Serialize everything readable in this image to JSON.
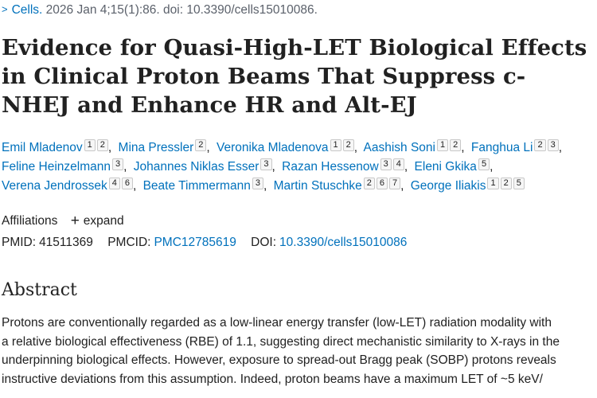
{
  "citation": {
    "journal": "Cells.",
    "details": "2026 Jan 4;15(1):86. doi: 10.3390/cells15010086."
  },
  "title": "Evidence for Quasi-High-LET Biological Effects in Clinical Proton Beams That Suppress c-NHEJ and Enhance HR and Alt-EJ",
  "authors": [
    {
      "name": "Emil Mladenov",
      "affils": [
        "1",
        "2"
      ]
    },
    {
      "name": "Mina Pressler",
      "affils": [
        "2"
      ]
    },
    {
      "name": "Veronika Mladenova",
      "affils": [
        "1",
        "2"
      ]
    },
    {
      "name": "Aashish Soni",
      "affils": [
        "1",
        "2"
      ]
    },
    {
      "name": "Fanghua Li",
      "affils": [
        "2",
        "3"
      ]
    },
    {
      "name": "Feline Heinzelmann",
      "affils": [
        "3"
      ]
    },
    {
      "name": "Johannes Niklas Esser",
      "affils": [
        "3"
      ]
    },
    {
      "name": "Razan Hessenow",
      "affils": [
        "3",
        "4"
      ]
    },
    {
      "name": "Eleni Gkika",
      "affils": [
        "5"
      ]
    },
    {
      "name": "Verena Jendrossek",
      "affils": [
        "4",
        "6"
      ]
    },
    {
      "name": "Beate Timmermann",
      "affils": [
        "3"
      ]
    },
    {
      "name": "Martin Stuschke",
      "affils": [
        "2",
        "6",
        "7"
      ]
    },
    {
      "name": "George Iliakis",
      "affils": [
        "1",
        "2",
        "5"
      ]
    }
  ],
  "affiliations": {
    "label": "Affiliations",
    "expand_label": "expand"
  },
  "ids": {
    "pmid_label": "PMID:",
    "pmid": "41511369",
    "pmcid_label": "PMCID:",
    "pmcid": "PMC12785619",
    "doi_label": "DOI:",
    "doi": "10.3390/cells15010086"
  },
  "abstract": {
    "heading": "Abstract",
    "lines": [
      "Protons are conventionally regarded as a low-linear energy transfer (low-LET) radiation modality with",
      "a relative biological effectiveness (RBE) of 1.1, suggesting direct mechanistic similarity to X-rays in the",
      "underpinning biological effects. However, exposure to spread-out Bragg peak (SOBP) protons reveals",
      "instructive deviations from this assumption. Indeed, proton beams have a maximum LET of ~5 keV/"
    ]
  }
}
